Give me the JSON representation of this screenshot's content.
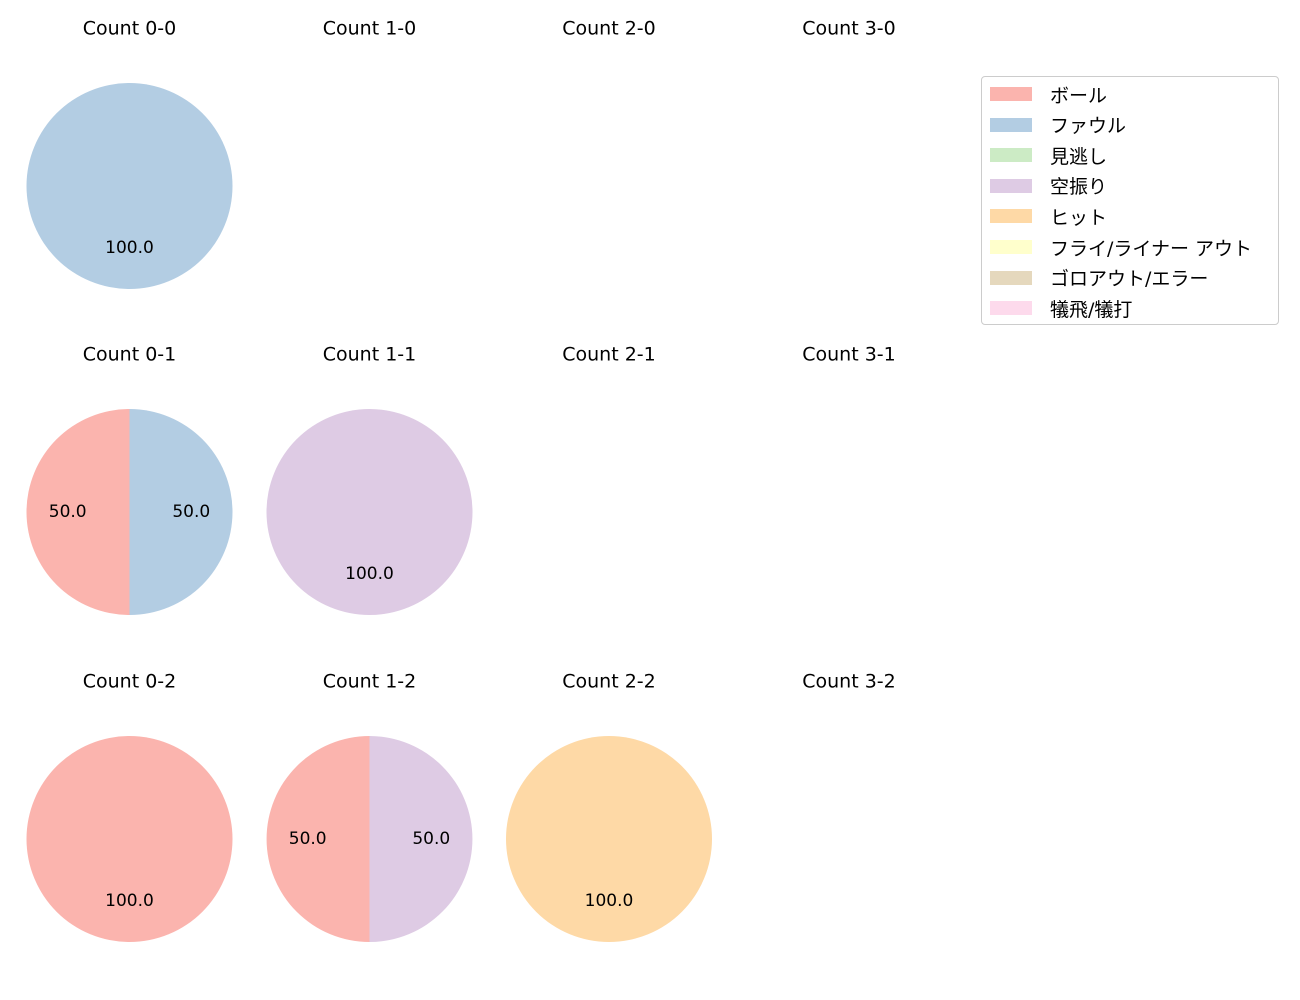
{
  "chart_data": {
    "type": "pie",
    "panels": [
      {
        "title": "Count 0-0",
        "slices": [
          {
            "category": "ファウル",
            "value": 100.0
          }
        ]
      },
      {
        "title": "Count 1-0",
        "slices": []
      },
      {
        "title": "Count 2-0",
        "slices": []
      },
      {
        "title": "Count 3-0",
        "slices": []
      },
      {
        "title": "Count 0-1",
        "slices": [
          {
            "category": "ボール",
            "value": 50.0
          },
          {
            "category": "ファウル",
            "value": 50.0
          }
        ]
      },
      {
        "title": "Count 1-1",
        "slices": [
          {
            "category": "空振り",
            "value": 100.0
          }
        ]
      },
      {
        "title": "Count 2-1",
        "slices": []
      },
      {
        "title": "Count 3-1",
        "slices": []
      },
      {
        "title": "Count 0-2",
        "slices": [
          {
            "category": "ボール",
            "value": 100.0
          }
        ]
      },
      {
        "title": "Count 1-2",
        "slices": [
          {
            "category": "ボール",
            "value": 50.0
          },
          {
            "category": "空振り",
            "value": 50.0
          }
        ]
      },
      {
        "title": "Count 2-2",
        "slices": [
          {
            "category": "ヒット",
            "value": 100.0
          }
        ]
      },
      {
        "title": "Count 3-2",
        "slices": []
      }
    ],
    "legend": {
      "placement": "top-right",
      "entries": [
        {
          "label": "ボール",
          "color": "#fbb4ae"
        },
        {
          "label": "ファウル",
          "color": "#b3cde3"
        },
        {
          "label": "見逃し",
          "color": "#ccebc5"
        },
        {
          "label": "空振り",
          "color": "#decbe4"
        },
        {
          "label": "ヒット",
          "color": "#fed9a6"
        },
        {
          "label": "フライ/ライナー アウト",
          "color": "#ffffcc"
        },
        {
          "label": "ゴロアウト/エラー",
          "color": "#e5d8bd"
        },
        {
          "label": "犠飛/犠打",
          "color": "#fddaec"
        }
      ]
    }
  }
}
